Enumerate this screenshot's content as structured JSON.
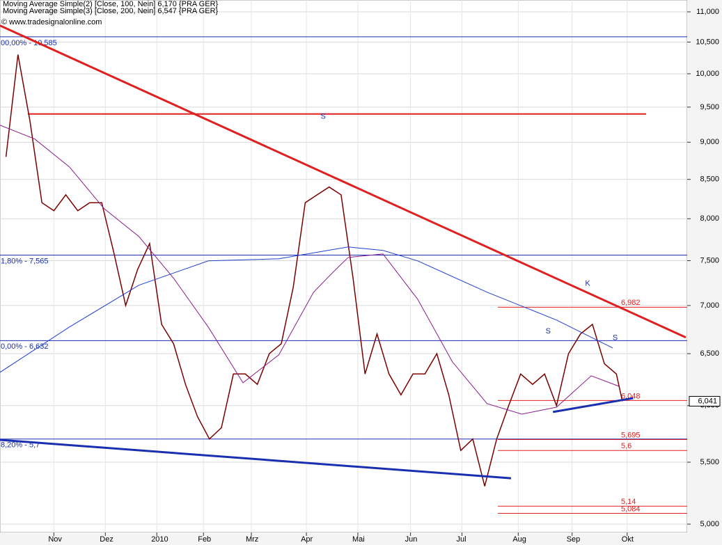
{
  "chart_data": {
    "type": "line",
    "log_scale": true,
    "grid": true,
    "copyright": "© www.tradesignalonline.com",
    "xlim": [
      0,
      57.3
    ],
    "ylim": [
      5000,
      11000
    ],
    "xticks": [
      {
        "value": 4.5,
        "label": "Nov"
      },
      {
        "value": 8.8,
        "label": "Dez"
      },
      {
        "value": 13.1,
        "label": "2010"
      },
      {
        "value": 17.0,
        "label": "Feb"
      },
      {
        "value": 21.0,
        "label": "Mrz"
      },
      {
        "value": 25.6,
        "label": "Apr"
      },
      {
        "value": 29.9,
        "label": "Mai"
      },
      {
        "value": 34.3,
        "label": "Jun"
      },
      {
        "value": 38.6,
        "label": "Jul"
      },
      {
        "value": 43.3,
        "label": "Aug"
      },
      {
        "value": 47.8,
        "label": "Sep"
      },
      {
        "value": 52.4,
        "label": "Okt"
      }
    ],
    "yticks": [
      {
        "value": 5000,
        "label": "5,000"
      },
      {
        "value": 5500,
        "label": "5,500"
      },
      {
        "value": 6000,
        "label": "6,000"
      },
      {
        "value": 6500,
        "label": "6,500"
      },
      {
        "value": 7000,
        "label": "7,000"
      },
      {
        "value": 7500,
        "label": "7,500"
      },
      {
        "value": 8000,
        "label": "8,000"
      },
      {
        "value": 8500,
        "label": "8,500"
      },
      {
        "value": 9000,
        "label": "9,000"
      },
      {
        "value": 9500,
        "label": "9,500"
      },
      {
        "value": 10000,
        "label": "10,000"
      },
      {
        "value": 10500,
        "label": "10,500"
      },
      {
        "value": 11000,
        "label": "11,000"
      }
    ],
    "series": [
      {
        "color": "#7a0000",
        "width": 1.5,
        "x": [
          0.5,
          1.5,
          2.5,
          3.5,
          4.5,
          5.5,
          6.5,
          7.5,
          8.5,
          9.5,
          10.5,
          11.5,
          12.5,
          13.5,
          14.5,
          15.5,
          16.5,
          17.5,
          18.5,
          19.5,
          20.5,
          21.5,
          22.5,
          23.5,
          24.5,
          25.5,
          26.5,
          27.5,
          28.5,
          29.5,
          30.5,
          31.5,
          32.5,
          33.5,
          34.5,
          35.5,
          36.5,
          37.5,
          38.5,
          39.5,
          40.5,
          41.5,
          42.5,
          43.5,
          44.5,
          45.5,
          46.5,
          47.5,
          48.5,
          49.5,
          50.5,
          51.5,
          52.0
        ],
        "values": [
          8800,
          10300,
          9300,
          8200,
          8100,
          8300,
          8100,
          8200,
          8200,
          7600,
          7000,
          7400,
          7700,
          6800,
          6600,
          6200,
          5900,
          5700,
          5800,
          6300,
          6300,
          6200,
          6500,
          6600,
          7200,
          8200,
          8300,
          8400,
          8300,
          7300,
          6300,
          6700,
          6300,
          6100,
          6300,
          6300,
          6500,
          6100,
          5600,
          5700,
          5300,
          5700,
          6000,
          6300,
          6200,
          6300,
          6000,
          6500,
          6700,
          6800,
          6400,
          6300,
          6041
        ]
      },
      {
        "name": "Moving Average Simple(2) [Close, 100, Nein] 6,170 {PRA GER}",
        "color": "#8b1a8b",
        "width": 1,
        "x": [
          0,
          2.9,
          5.8,
          8.7,
          11.6,
          14.5,
          17.4,
          20.3,
          23.3,
          26.2,
          27.9,
          29.1,
          32,
          34.9,
          37.8,
          40.7,
          43.6,
          46.5,
          49.4,
          51.7
        ],
        "values": [
          9240,
          9045,
          8664,
          8125,
          7785,
          7300,
          6772,
          6215,
          6488,
          7145,
          7378,
          7538,
          7578,
          7068,
          6418,
          6018,
          5922,
          5986,
          6282,
          6182
        ]
      },
      {
        "name": "Moving Average Simple(3) [Close, 200, Nein] 6,547 {PRA GER}",
        "color": "#1f3fd0",
        "width": 1,
        "x": [
          0,
          5.8,
          11.6,
          17.4,
          23.3,
          29.1,
          32,
          34.9,
          40.7,
          46.5,
          51.2
        ],
        "values": [
          6316,
          6772,
          7222,
          7498,
          7522,
          7660,
          7619,
          7498,
          7145,
          6845,
          6557
        ]
      }
    ],
    "last_price_label": "6,041",
    "fib_levels": [
      {
        "value": 10585,
        "label": "00,00% - 10,585"
      },
      {
        "value": 7565,
        "label": "1,80% - 7,565"
      },
      {
        "value": 6632,
        "label": "0,00% - 6,632"
      },
      {
        "value": 5700,
        "label": "8,20% - 5,7"
      }
    ],
    "red_levels": [
      {
        "value": 6982,
        "label": "6,982"
      },
      {
        "value": 6048,
        "label": "6,048"
      },
      {
        "value": 5695,
        "label": "5,695"
      },
      {
        "value": 5600,
        "label": "5,6"
      },
      {
        "value": 5140,
        "label": "5,14"
      },
      {
        "value": 5084,
        "label": "5,084"
      }
    ],
    "resistance": 9400,
    "trendlines": [
      {
        "color": "#e02020",
        "x": [
          0,
          57.3
        ],
        "values": [
          10770,
          6665
        ]
      },
      {
        "color": "#1a2fb0",
        "x": [
          0,
          42.7
        ],
        "values": [
          5692,
          5366
        ]
      },
      {
        "color": "#1a2fb0",
        "x": [
          46.2,
          52.9
        ],
        "values": [
          5942,
          6070
        ]
      }
    ],
    "annotations": [
      {
        "text": "S",
        "x": 27.0,
        "value": 9360
      },
      {
        "text": "S",
        "x": 45.8,
        "value": 6728
      },
      {
        "text": "K",
        "x": 49.1,
        "value": 7237
      },
      {
        "text": "S",
        "x": 51.4,
        "value": 6657
      }
    ]
  }
}
